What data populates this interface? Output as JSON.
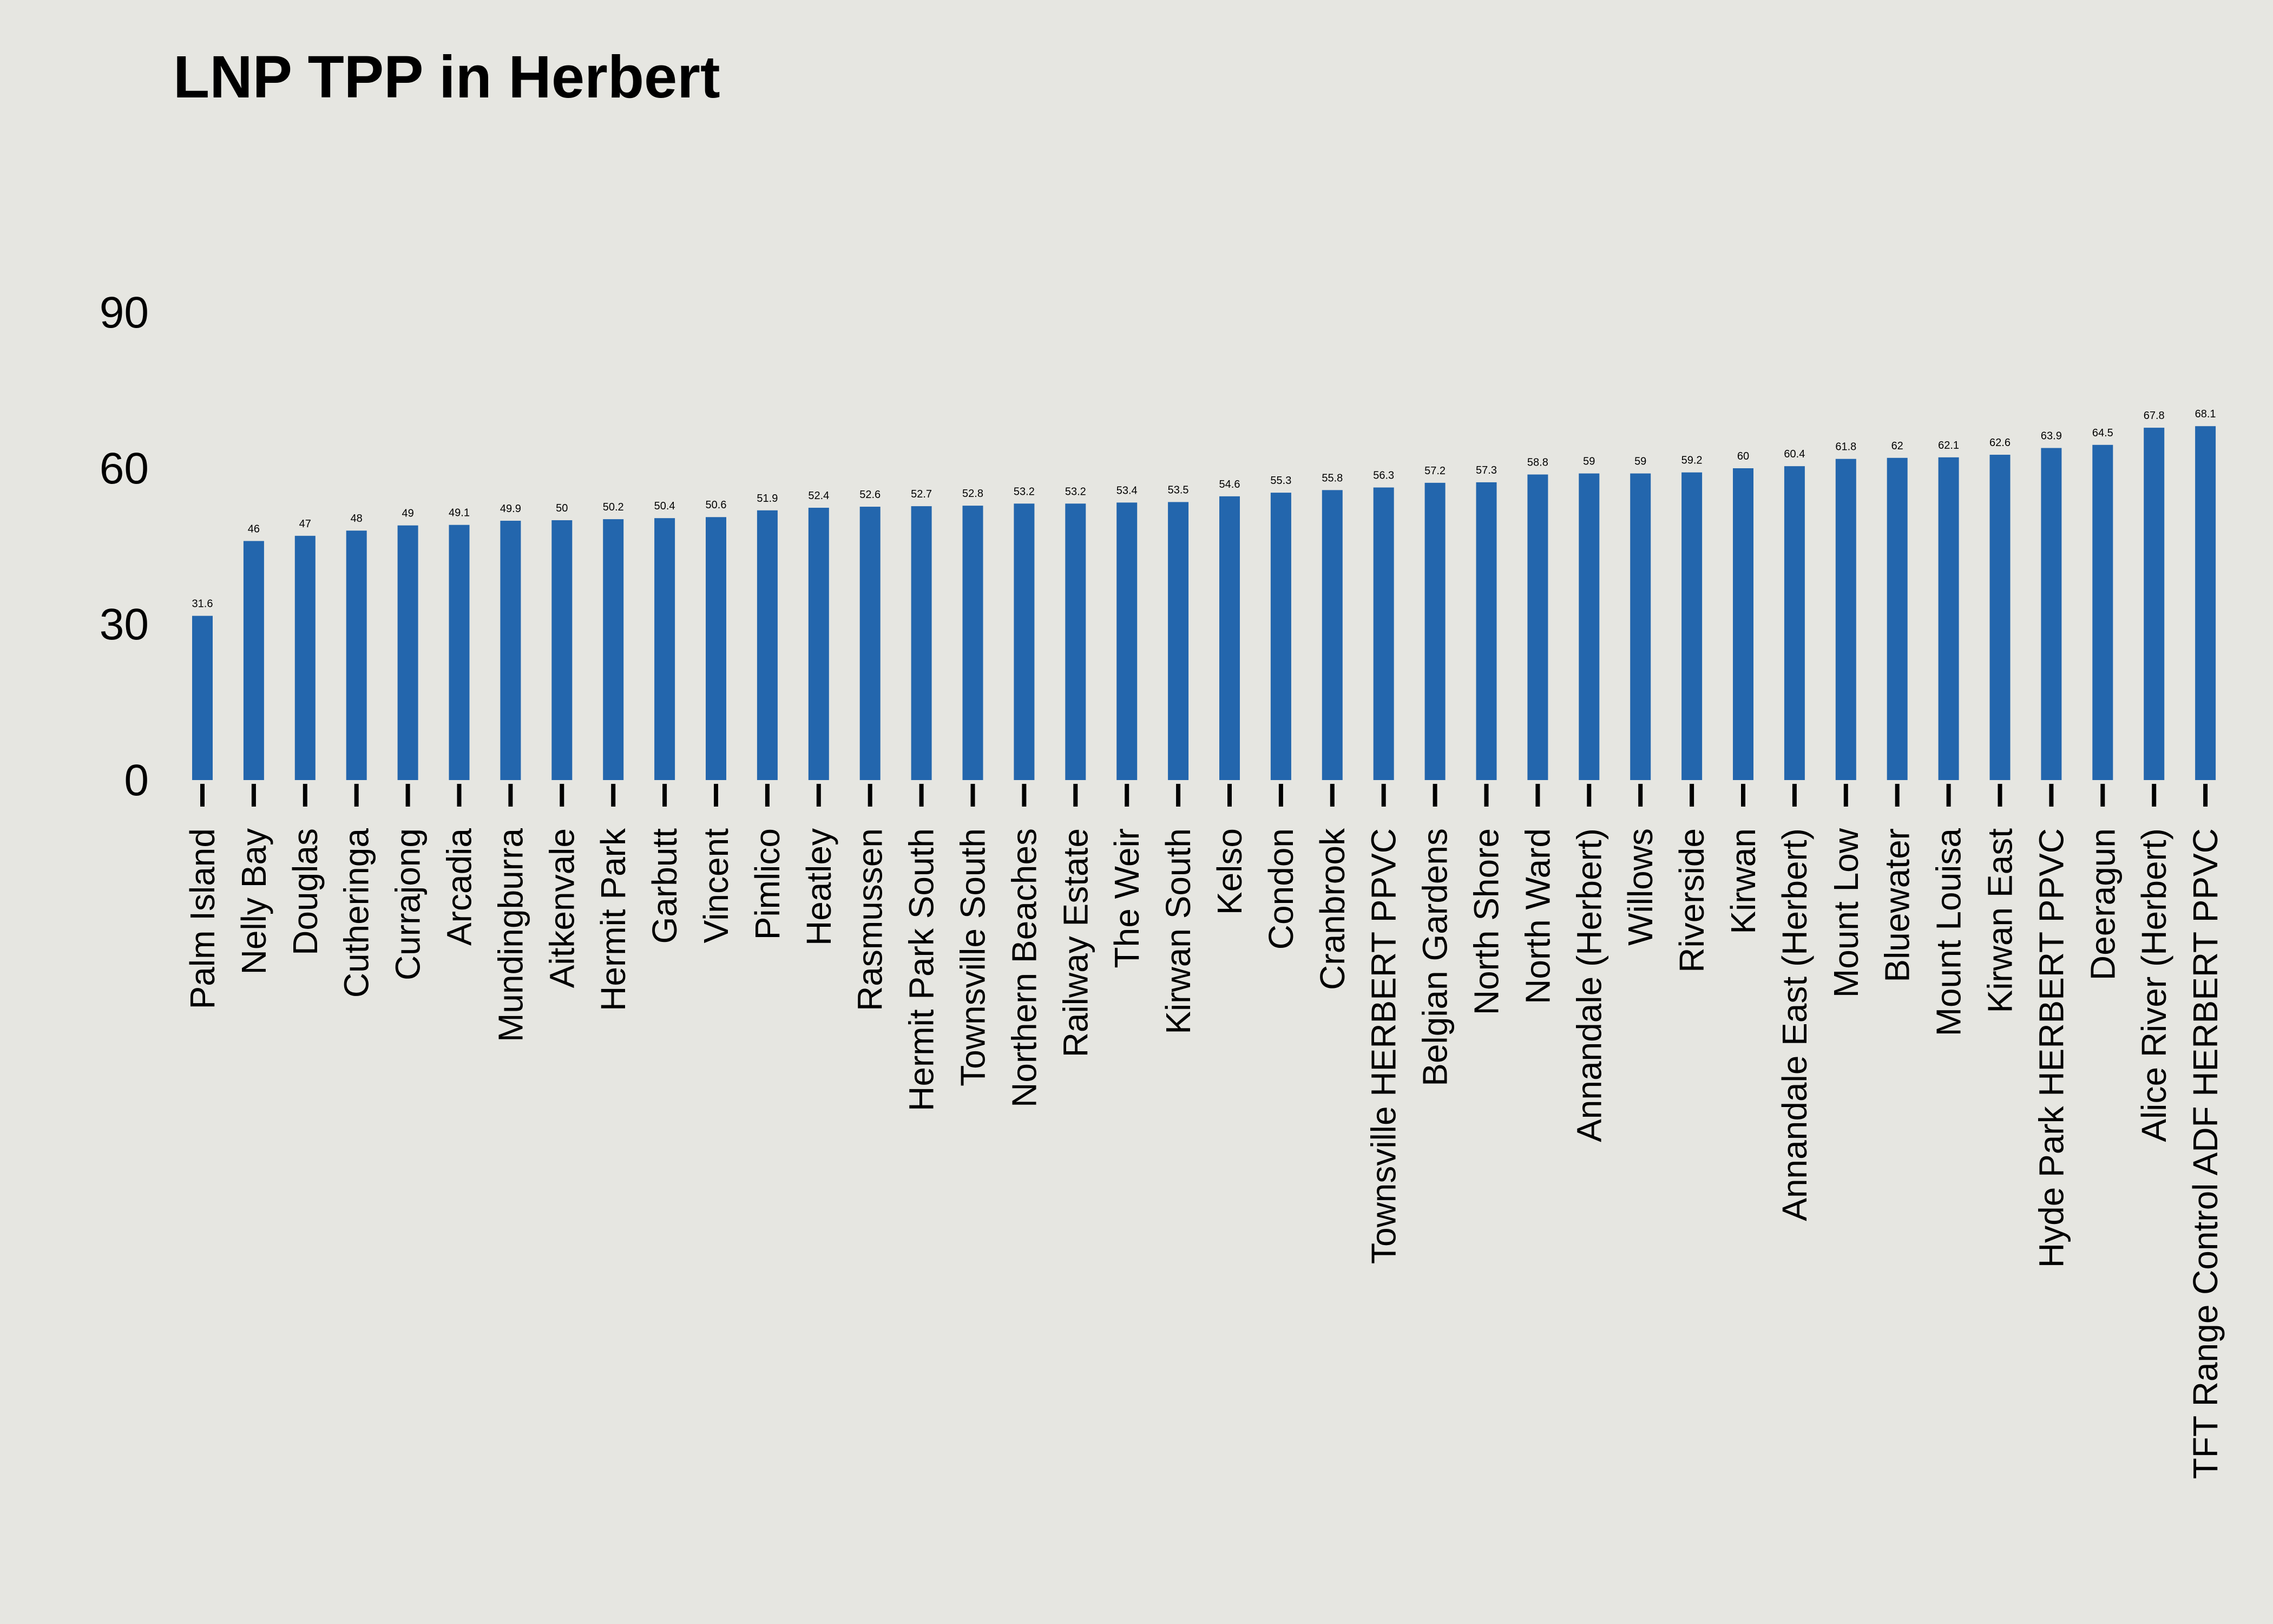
{
  "chart_data": {
    "type": "bar",
    "title": "LNP TPP in Herbert",
    "xlabel": "",
    "ylabel": "",
    "ylim": [
      0,
      100
    ],
    "yticks": [
      0,
      30,
      60,
      90
    ],
    "grid": false,
    "legend": "none",
    "bar_color": "#2366ad",
    "background_color": "#e6e6e1",
    "categories": [
      "Palm Island",
      "Nelly Bay",
      "Douglas",
      "Cutheringa",
      "Currajong",
      "Arcadia",
      "Mundingburra",
      "Aitkenvale",
      "Hermit Park",
      "Garbutt",
      "Vincent",
      "Pimlico",
      "Heatley",
      "Rasmussen",
      "Hermit Park South",
      "Townsville South",
      "Northern Beaches",
      "Railway Estate",
      "The Weir",
      "Kirwan South",
      "Kelso",
      "Condon",
      "Cranbrook",
      "Townsville HERBERT PPVC",
      "Belgian Gardens",
      "North Shore",
      "North Ward",
      "Annandale (Herbert)",
      "Willows",
      "Riverside",
      "Kirwan",
      "Annandale East (Herbert)",
      "Mount Low",
      "Bluewater",
      "Mount Louisa",
      "Kirwan East",
      "Hyde Park HERBERT PPVC",
      "Deeragun",
      "Alice River (Herbert)",
      "TFT Range Control ADF HERBERT PPVC"
    ],
    "values": [
      31.6,
      46,
      47,
      48,
      49,
      49.1,
      49.9,
      50,
      50.2,
      50.4,
      50.6,
      51.9,
      52.4,
      52.6,
      52.7,
      52.8,
      53.2,
      53.2,
      53.4,
      53.5,
      54.6,
      55.3,
      55.8,
      56.3,
      57.2,
      57.3,
      58.8,
      59,
      59,
      59.2,
      60,
      60.4,
      61.8,
      62,
      62.1,
      62.6,
      63.9,
      64.5,
      67.8,
      68.1
    ]
  }
}
